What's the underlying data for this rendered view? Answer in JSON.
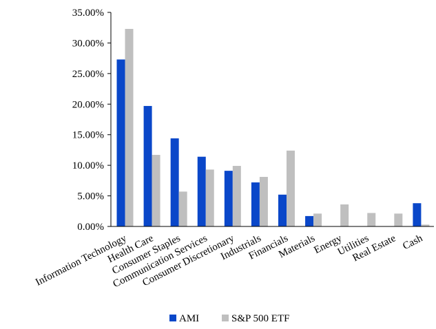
{
  "chart_data": {
    "type": "bar",
    "categories": [
      "Information Technology",
      "Health Care",
      "Consumer Staples",
      "Communication Services",
      "Consumer Discretionary",
      "Industrials",
      "Financials",
      "Materials",
      "Energy",
      "Utilities",
      "Real Estate",
      "Cash"
    ],
    "series": [
      {
        "name": "AMI",
        "color": "#0a47c9",
        "values": [
          27.3,
          19.7,
          14.4,
          11.4,
          9.1,
          7.2,
          5.2,
          1.7,
          0,
          0,
          0,
          3.8
        ]
      },
      {
        "name": "S&P 500 ETF",
        "color": "#bfbfbf",
        "values": [
          32.3,
          11.7,
          5.7,
          9.3,
          9.9,
          8.1,
          12.4,
          2.1,
          3.6,
          2.2,
          2.1,
          0.3
        ]
      }
    ],
    "yticks": [
      "0.00%",
      "5.00%",
      "10.00%",
      "15.00%",
      "20.00%",
      "25.00%",
      "30.00%",
      "35.00%"
    ],
    "ylim": [
      0,
      35
    ],
    "grid": false,
    "legend_position": "bottom"
  }
}
